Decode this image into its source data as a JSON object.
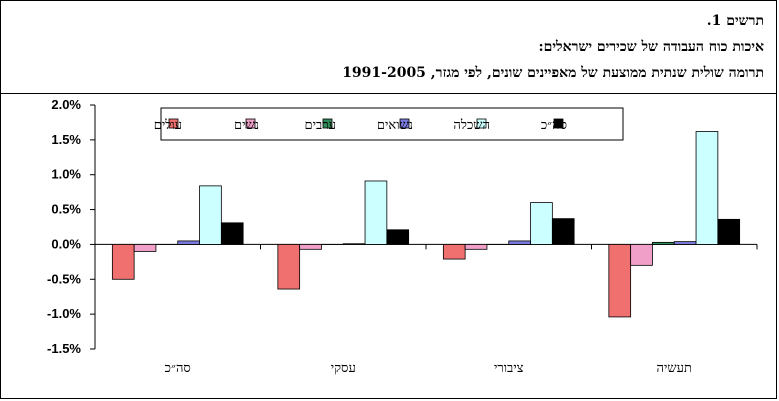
{
  "title": {
    "line1": "תרשים 1.",
    "line2": "איכות כוח העבודה של שכירים ישראלים:",
    "line3": "תרומה שולית שנתית ממוצעת של מאפיינים שונים, לפי מגזר, 1991-2005"
  },
  "chart_data": {
    "type": "bar",
    "categories": [
      "סה״כ",
      "עסקי",
      "ציבורי",
      "תעשיה"
    ],
    "ylim": [
      -0.015,
      0.02
    ],
    "yticks": [
      "2.0%",
      "1.5%",
      "1.0%",
      "0.5%",
      "0.0%",
      "-0.5%",
      "-1.0%",
      "-1.5%"
    ],
    "series": [
      {
        "name": "עולים",
        "color": "#f07070",
        "values": [
          -0.005,
          -0.0064,
          -0.0021,
          -0.0104
        ]
      },
      {
        "name": "נשים",
        "color": "#f0a0c8",
        "values": [
          -0.001,
          -0.0007,
          -0.0007,
          -0.003
        ]
      },
      {
        "name": "ערבים",
        "color": "#2e8b57",
        "values": [
          0.0,
          0.0,
          0.0,
          0.0003
        ]
      },
      {
        "name": "נשואים",
        "color": "#7b7bdf",
        "values": [
          0.0005,
          0.0001,
          0.0005,
          0.0004
        ]
      },
      {
        "name": "השכלה",
        "color": "#ccffff",
        "values": [
          0.0084,
          0.0091,
          0.006,
          0.0162
        ]
      },
      {
        "name": "סה״כ",
        "color": "#000000",
        "values": [
          0.0031,
          0.0021,
          0.0037,
          0.0036
        ]
      }
    ],
    "legend_position": "top-inside",
    "grid": false
  }
}
